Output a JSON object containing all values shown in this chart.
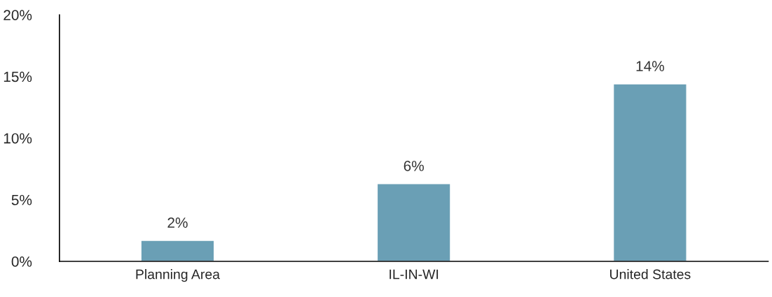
{
  "chart_data": {
    "type": "bar",
    "categories": [
      "Planning Area",
      "IL-IN-WI",
      "United States"
    ],
    "values": [
      1.7,
      6.3,
      14.4
    ],
    "value_labels": [
      "2%",
      "6%",
      "14%"
    ],
    "color": "#6a9fb5",
    "ylim": [
      0,
      20
    ],
    "yticks": [
      {
        "value": 0,
        "label": "0%"
      },
      {
        "value": 5,
        "label": "5%"
      },
      {
        "value": 10,
        "label": "10%"
      },
      {
        "value": 15,
        "label": "15%"
      },
      {
        "value": 20,
        "label": "20%"
      }
    ],
    "grid": false,
    "legend": false
  }
}
